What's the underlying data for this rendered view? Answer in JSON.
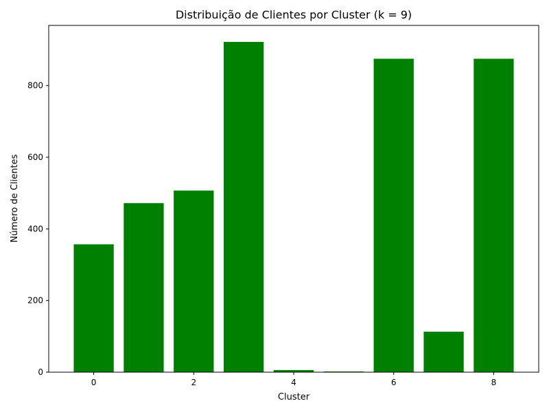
{
  "chart_data": {
    "type": "bar",
    "title": "Distribuição de Clientes por Cluster (k = 9)",
    "xlabel": "Cluster",
    "ylabel": "Número de Clientes",
    "categories": [
      0,
      1,
      2,
      3,
      4,
      5,
      6,
      7,
      8
    ],
    "values": [
      357,
      472,
      507,
      922,
      6,
      2,
      875,
      113,
      875
    ],
    "x_ticks": [
      "0",
      "2",
      "4",
      "6",
      "8"
    ],
    "y_ticks": [
      "0",
      "200",
      "400",
      "600",
      "800"
    ],
    "xlim": [
      -0.9,
      8.9
    ],
    "ylim": [
      0,
      968
    ],
    "bar_color": "#008000",
    "grid": false,
    "legend": "none"
  }
}
